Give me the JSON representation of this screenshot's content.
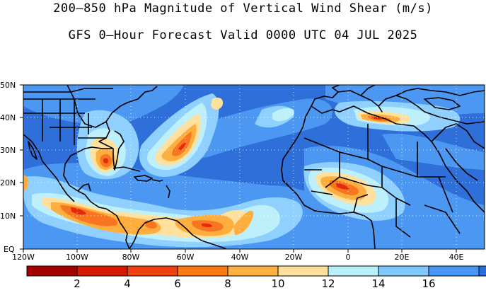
{
  "title_line1": "200–850 hPa Magnitude of Vertical Wind Shear (m/s)",
  "title_line2": "GFS 0–Hour Forecast Valid 0000 UTC 04 JUL 2025",
  "lat_labels": [
    "50N",
    "40N",
    "30N",
    "20N",
    "10N",
    "EQ"
  ],
  "lon_labels": [
    "120W",
    "100W",
    "80W",
    "60W",
    "40W",
    "20W",
    "0",
    "20E",
    "40E"
  ],
  "colorbar": {
    "colors": [
      "#a50000",
      "#d61800",
      "#f04010",
      "#fb7a10",
      "#feb040",
      "#fedf9c",
      "#b8f0fa",
      "#7fc8fe",
      "#4797f5",
      "#2a6cdd"
    ],
    "labels": [
      "2",
      "4",
      "6",
      "8",
      "10",
      "12",
      "14",
      "16"
    ]
  },
  "colors": {
    "ocean_base": "#2e6fd9",
    "medium_shear": "#4c97f2",
    "light_blue": "#8fd0ff",
    "pale": "#bdf0fb",
    "yellow": "#ffe09c",
    "orange": "#feae3e",
    "dark_orange": "#f87620",
    "red": "#e22a0c"
  }
}
